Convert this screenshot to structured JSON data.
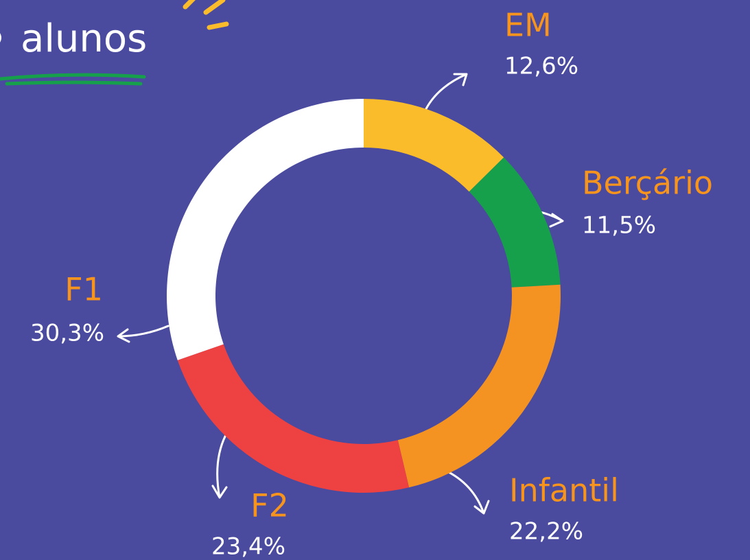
{
  "chart_data": {
    "type": "donut",
    "title": "alunos",
    "categories": [
      "EM",
      "Berçário",
      "Infantil",
      "F2",
      "F1"
    ],
    "values": [
      12.6,
      11.5,
      22.2,
      23.4,
      30.3
    ],
    "value_labels": [
      "12,6%",
      "11,5%",
      "22,2%",
      "23,4%",
      "30,3%"
    ],
    "colors": [
      "#fbbc2c",
      "#17a04b",
      "#f49322",
      "#ee4242",
      "#ffffff"
    ]
  }
}
